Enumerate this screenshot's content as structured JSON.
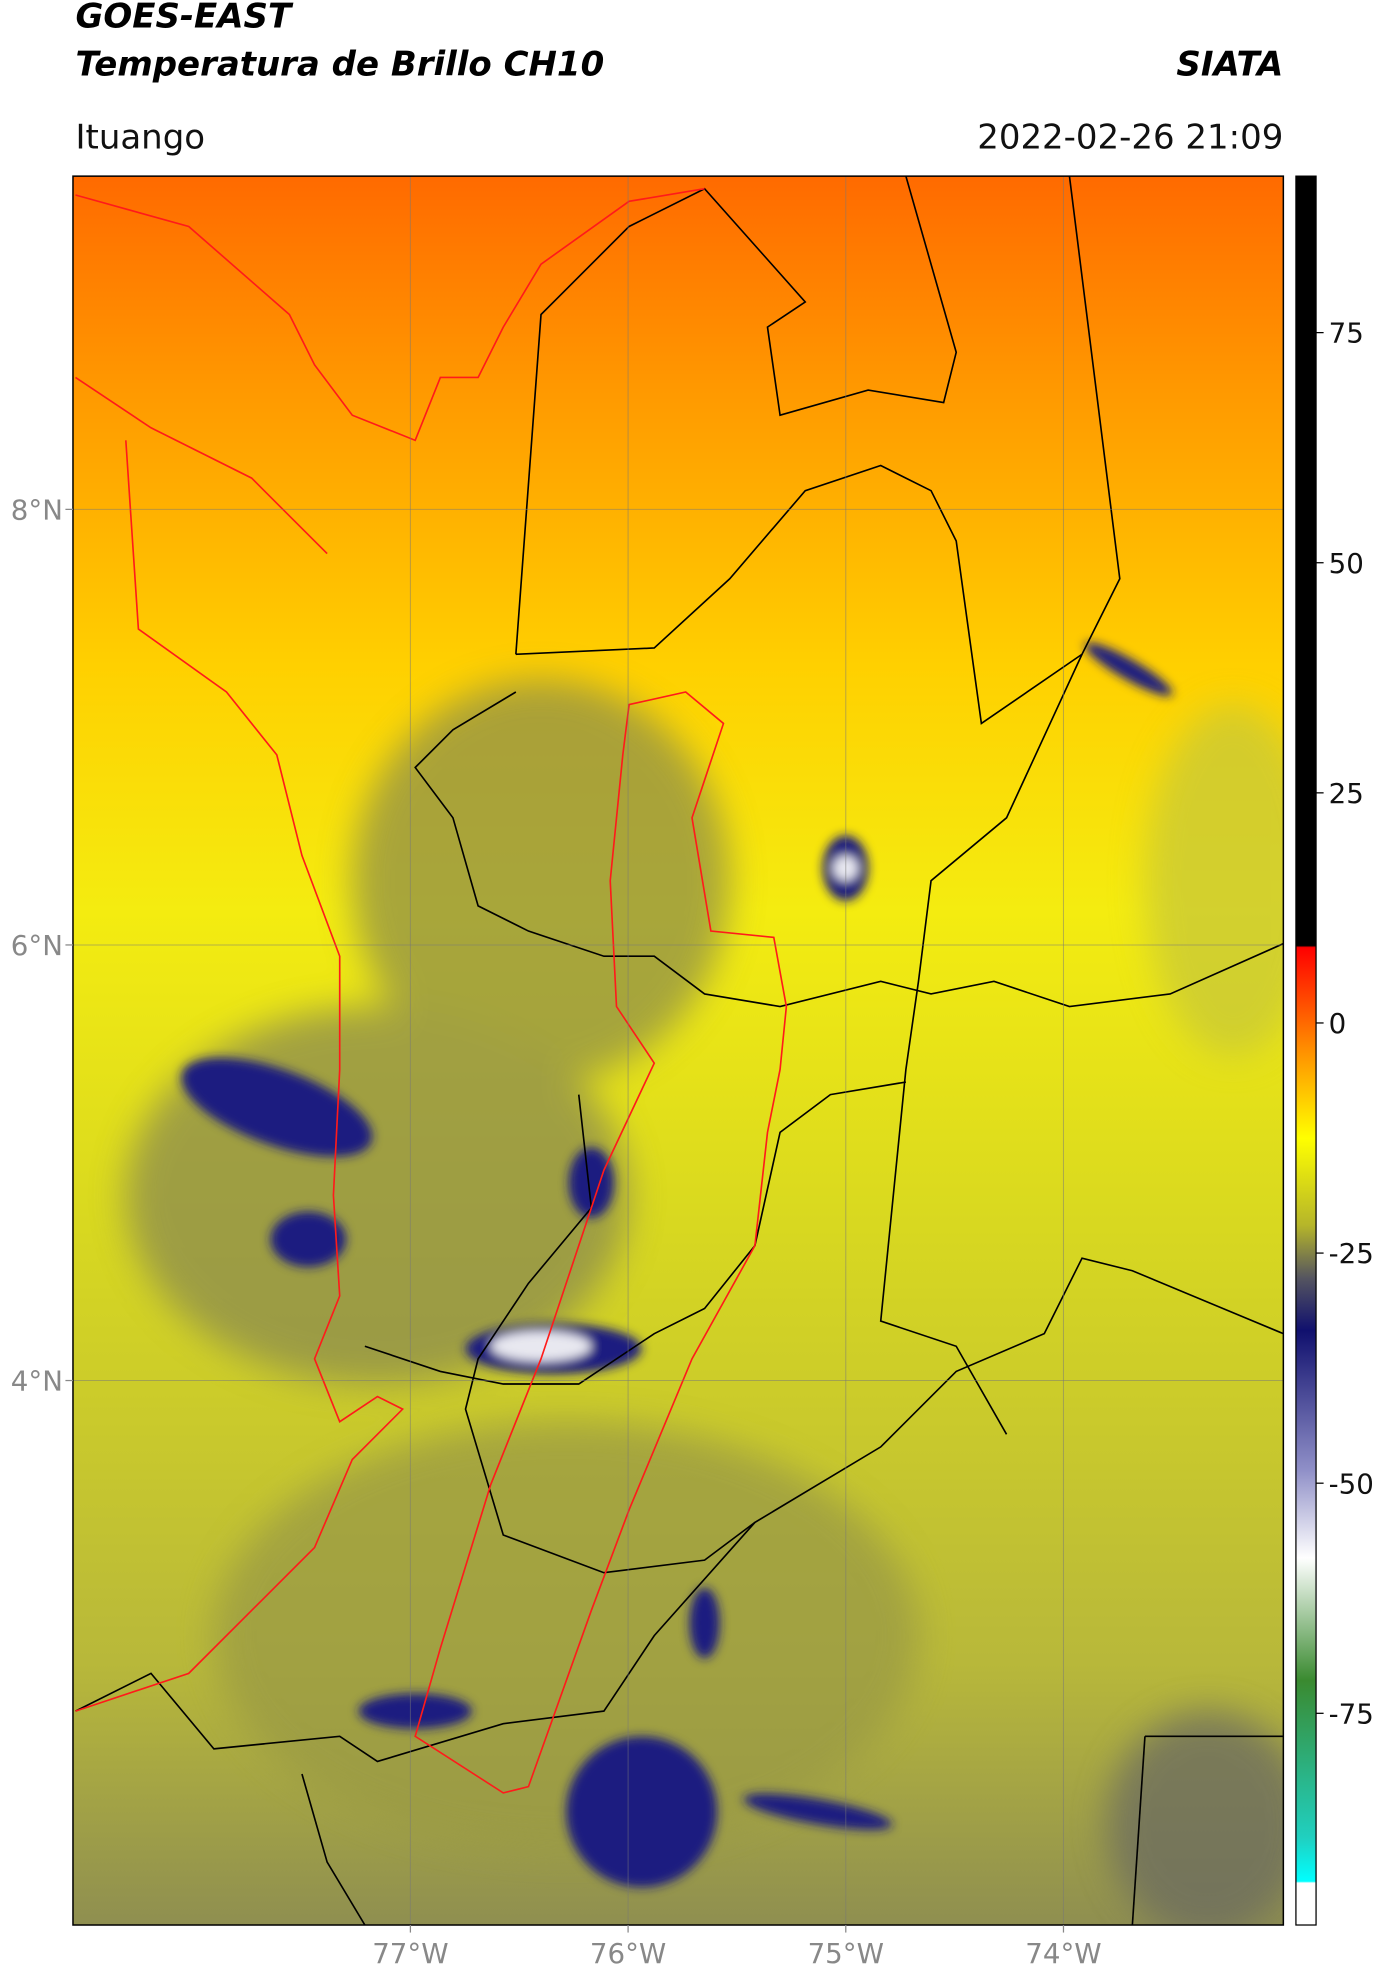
{
  "header": {
    "title_line1": "GOES-EAST",
    "title_line2": "Temperatura de Brillo CH10",
    "org": "SIATA",
    "location": "Ituango",
    "timestamp": "2022-02-26 21:09"
  },
  "map": {
    "lonlim": [
      -78.55,
      -72.99
    ],
    "latlim": [
      1.5,
      9.53
    ],
    "lat_ticks": [
      {
        "value": 8,
        "label": "8°N"
      },
      {
        "value": 6,
        "label": "6°N"
      },
      {
        "value": 4,
        "label": "4°N"
      }
    ],
    "lon_ticks": [
      {
        "value": -77,
        "label": "77°W"
      },
      {
        "value": -76,
        "label": "76°W"
      },
      {
        "value": -75,
        "label": "75°W"
      },
      {
        "value": -74,
        "label": "74°W"
      }
    ]
  },
  "colorbar": {
    "lim": [
      -98,
      92
    ],
    "ticks": [
      75,
      50,
      25,
      0,
      -25,
      -50,
      -75
    ]
  }
}
